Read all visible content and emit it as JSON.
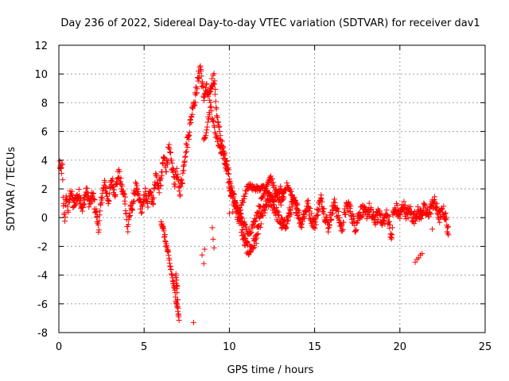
{
  "chart_data": {
    "type": "scatter",
    "title": "Day 236 of 2022, Sidereal Day-to-day VTEC variation (SDTVAR) for receiver dav1",
    "xlabel": "GPS time / hours",
    "ylabel": "SDTVAR / TECUs",
    "xlim": [
      0,
      25
    ],
    "ylim": [
      -8,
      12
    ],
    "xticks": [
      0,
      5,
      10,
      15,
      20,
      25
    ],
    "yticks": [
      -8,
      -6,
      -4,
      -2,
      0,
      2,
      4,
      6,
      8,
      10,
      12
    ],
    "grid": true,
    "marker": "+",
    "series": [
      {
        "name": "dav1",
        "color": "#ff0000",
        "trace": [
          [
            0.05,
            3.8
          ],
          [
            0.1,
            3.2
          ],
          [
            0.2,
            3.5
          ],
          [
            0.25,
            1.2
          ],
          [
            0.35,
            0.0
          ],
          [
            0.45,
            1.5
          ],
          [
            0.55,
            0.5
          ],
          [
            0.7,
            2.0
          ],
          [
            0.85,
            0.8
          ],
          [
            1.0,
            1.3
          ],
          [
            1.2,
            1.6
          ],
          [
            1.4,
            0.6
          ],
          [
            1.6,
            1.9
          ],
          [
            1.8,
            1.0
          ],
          [
            2.0,
            1.5
          ],
          [
            2.2,
            0.2
          ],
          [
            2.35,
            -0.7
          ],
          [
            2.5,
            1.4
          ],
          [
            2.7,
            2.3
          ],
          [
            2.9,
            1.2
          ],
          [
            3.1,
            2.6
          ],
          [
            3.3,
            1.8
          ],
          [
            3.5,
            3.1
          ],
          [
            3.7,
            2.0
          ],
          [
            3.9,
            1.2
          ],
          [
            3.95,
            0.3
          ],
          [
            4.0,
            -0.5
          ],
          [
            4.05,
            -1.1
          ],
          [
            4.1,
            0.0
          ],
          [
            4.3,
            0.8
          ],
          [
            4.5,
            2.1
          ],
          [
            4.7,
            1.3
          ],
          [
            4.9,
            0.5
          ],
          [
            5.05,
            1.8
          ],
          [
            5.2,
            0.8
          ],
          [
            5.35,
            2.2
          ],
          [
            5.5,
            1.0
          ],
          [
            5.7,
            3.0
          ],
          [
            5.85,
            2.0
          ],
          [
            6.0,
            2.6
          ],
          [
            6.15,
            4.2
          ],
          [
            6.3,
            3.5
          ],
          [
            6.45,
            4.8
          ],
          [
            6.6,
            3.8
          ],
          [
            6.8,
            2.5
          ],
          [
            6.9,
            3.2
          ],
          [
            7.0,
            2.4
          ],
          [
            7.1,
            1.9
          ],
          [
            7.25,
            2.8
          ],
          [
            7.4,
            4.5
          ],
          [
            7.55,
            5.3
          ],
          [
            7.7,
            6.5
          ],
          [
            7.85,
            7.8
          ],
          [
            8.0,
            8.4
          ],
          [
            8.15,
            9.5
          ],
          [
            8.3,
            10.6
          ],
          [
            8.4,
            9.3
          ],
          [
            8.5,
            8.4
          ],
          [
            8.65,
            9.0
          ],
          [
            8.8,
            8.2
          ],
          [
            8.95,
            9.3
          ],
          [
            9.1,
            9.8
          ],
          [
            9.2,
            8.2
          ],
          [
            9.3,
            6.8
          ],
          [
            9.45,
            5.6
          ],
          [
            9.6,
            4.8
          ],
          [
            9.75,
            4.0
          ],
          [
            9.9,
            3.2
          ],
          [
            10.0,
            2.4
          ],
          [
            10.1,
            1.8
          ],
          [
            10.25,
            1.2
          ],
          [
            10.4,
            0.6
          ],
          [
            10.55,
            0.0
          ],
          [
            10.7,
            -0.7
          ],
          [
            10.85,
            -1.5
          ],
          [
            11.0,
            -2.0
          ],
          [
            11.15,
            -2.3
          ],
          [
            11.3,
            -2.1
          ],
          [
            11.5,
            -1.7
          ],
          [
            11.65,
            -1.0
          ],
          [
            11.8,
            -0.3
          ],
          [
            12.0,
            0.4
          ],
          [
            12.2,
            0.9
          ],
          [
            12.4,
            1.2
          ],
          [
            12.6,
            0.8
          ],
          [
            12.8,
            0.2
          ],
          [
            13.0,
            -0.3
          ],
          [
            13.2,
            -0.6
          ],
          [
            13.4,
            -0.2
          ],
          [
            13.6,
            0.6
          ],
          [
            13.8,
            1.1
          ],
          [
            14.0,
            0.5
          ],
          [
            14.2,
            -0.4
          ],
          [
            14.4,
            0.3
          ],
          [
            14.6,
            0.9
          ],
          [
            14.8,
            0.0
          ],
          [
            15.0,
            -0.5
          ],
          [
            15.2,
            0.6
          ],
          [
            15.4,
            1.3
          ],
          [
            15.6,
            0.2
          ],
          [
            15.8,
            -0.6
          ],
          [
            16.0,
            0.4
          ],
          [
            16.2,
            1.0
          ],
          [
            16.4,
            0.0
          ],
          [
            16.6,
            -0.8
          ],
          [
            16.8,
            0.5
          ],
          [
            17.0,
            0.9
          ],
          [
            17.2,
            0.1
          ],
          [
            17.4,
            -0.7
          ],
          [
            17.6,
            0.3
          ],
          [
            17.8,
            0.5
          ],
          [
            18.0,
            0.2
          ],
          [
            18.2,
            0.6
          ],
          [
            18.4,
            0.0
          ],
          [
            18.6,
            -0.1
          ],
          [
            18.8,
            0.4
          ],
          [
            19.0,
            -0.4
          ],
          [
            19.2,
            0.2
          ],
          [
            19.4,
            -0.3
          ],
          [
            19.5,
            -1.8
          ],
          [
            19.6,
            0.3
          ],
          [
            19.8,
            0.6
          ],
          [
            20.0,
            0.1
          ],
          [
            20.2,
            0.9
          ],
          [
            20.4,
            0.2
          ],
          [
            20.6,
            0.5
          ],
          [
            20.8,
            -0.1
          ],
          [
            21.0,
            0.4
          ],
          [
            21.2,
            0.2
          ],
          [
            21.4,
            0.6
          ],
          [
            21.6,
            0.2
          ],
          [
            21.8,
            0.6
          ],
          [
            22.0,
            1.2
          ],
          [
            22.2,
            0.4
          ],
          [
            22.35,
            0.0
          ],
          [
            22.5,
            0.5
          ],
          [
            22.65,
            0.2
          ],
          [
            22.75,
            -0.4
          ],
          [
            22.85,
            -1.2
          ]
        ],
        "trace2": [
          [
            8.5,
            5.2
          ],
          [
            8.7,
            6.5
          ],
          [
            8.9,
            7.8
          ],
          [
            9.1,
            6.3
          ],
          [
            9.3,
            5.4
          ],
          [
            9.5,
            4.7
          ],
          [
            9.7,
            4.2
          ],
          [
            9.9,
            3.7
          ],
          [
            10.0,
            2.8
          ],
          [
            10.1,
            2.1
          ],
          [
            10.25,
            1.5
          ],
          [
            10.4,
            0.9
          ],
          [
            10.6,
            0.3
          ],
          [
            10.8,
            -0.3
          ],
          [
            11.0,
            -0.8
          ],
          [
            11.2,
            -1.0
          ],
          [
            11.4,
            -0.5
          ],
          [
            11.6,
            0.2
          ],
          [
            11.8,
            0.9
          ],
          [
            12.0,
            1.6
          ],
          [
            12.2,
            2.4
          ],
          [
            12.4,
            2.8
          ],
          [
            12.6,
            2.2
          ],
          [
            12.8,
            1.6
          ],
          [
            13.0,
            1.0
          ],
          [
            13.2,
            1.6
          ],
          [
            13.4,
            2.3
          ],
          [
            13.6,
            1.8
          ],
          [
            13.8,
            1.2
          ],
          [
            14.0,
            0.9
          ]
        ],
        "trace3": [
          [
            10.6,
            0.5
          ],
          [
            10.75,
            1.0
          ],
          [
            10.9,
            1.6
          ],
          [
            11.05,
            2.1
          ],
          [
            11.2,
            2.3
          ],
          [
            11.4,
            2.0
          ],
          [
            11.6,
            2.1
          ],
          [
            11.8,
            1.9
          ],
          [
            12.0,
            2.2
          ],
          [
            12.2,
            1.8
          ],
          [
            12.4,
            1.5
          ],
          [
            12.6,
            1.2
          ],
          [
            12.8,
            1.6
          ],
          [
            13.0,
            2.0
          ],
          [
            13.2,
            1.4
          ]
        ],
        "trace4": [
          [
            6.0,
            -0.2
          ],
          [
            6.1,
            -0.7
          ],
          [
            6.2,
            -1.3
          ],
          [
            6.3,
            -1.9
          ],
          [
            6.4,
            -2.5
          ],
          [
            6.5,
            -3.2
          ],
          [
            6.6,
            -3.8
          ],
          [
            6.7,
            -4.5
          ],
          [
            6.8,
            -5.2
          ],
          [
            6.9,
            -5.8
          ],
          [
            7.0,
            -6.6
          ],
          [
            7.05,
            -7.2
          ],
          [
            6.85,
            -4.0
          ],
          [
            6.95,
            -4.8
          ]
        ],
        "extra_points": [
          [
            7.9,
            -7.3
          ],
          [
            8.4,
            -2.6
          ],
          [
            8.5,
            -3.2
          ],
          [
            8.55,
            -2.2
          ],
          [
            9.0,
            -0.7
          ],
          [
            9.05,
            -1.5
          ],
          [
            9.1,
            -2.1
          ],
          [
            20.9,
            -3.1
          ],
          [
            21.0,
            -2.9
          ],
          [
            21.1,
            -2.8
          ],
          [
            21.2,
            -2.6
          ],
          [
            21.3,
            -2.5
          ],
          [
            21.9,
            -0.8
          ],
          [
            10.0,
            0.3
          ],
          [
            10.2,
            0.4
          ]
        ]
      }
    ]
  }
}
